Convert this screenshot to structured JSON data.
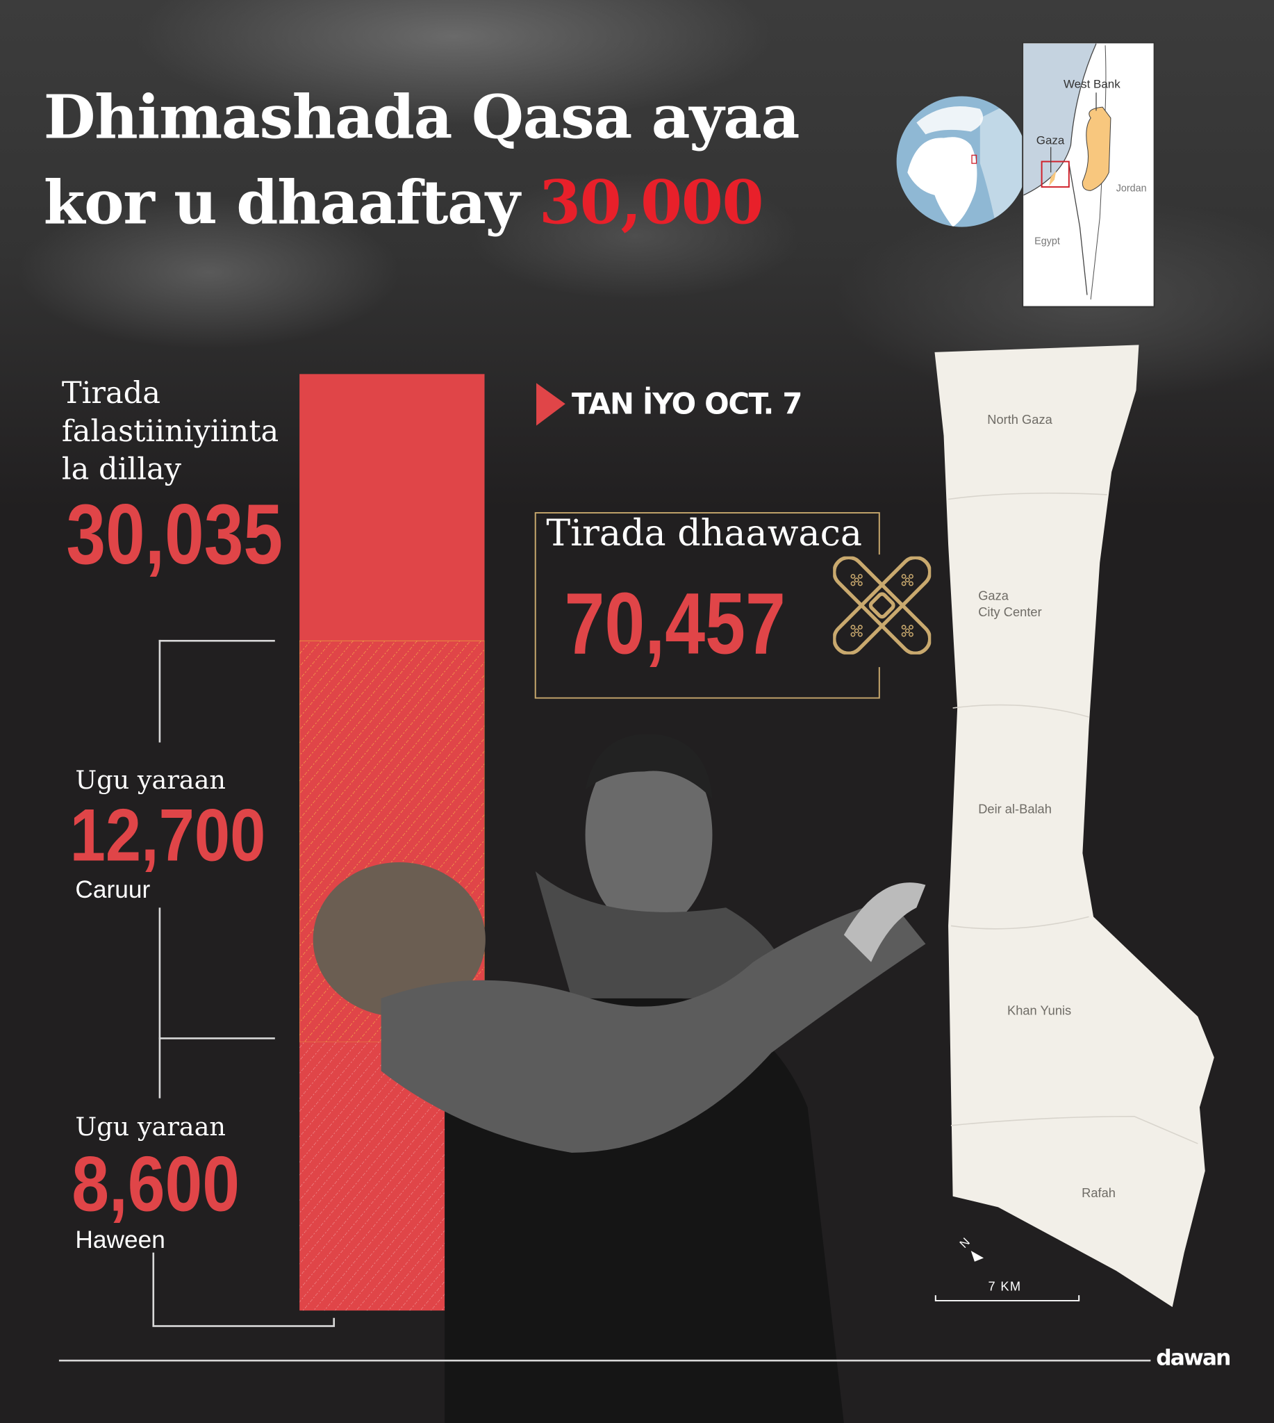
{
  "title": {
    "line1": "Dhimashada Qasa ayaa",
    "line2_prefix": "kor u dhaaftay",
    "line2_highlight": "30,000"
  },
  "since": {
    "label": "TAN İYO OCT. 7",
    "icon": "play-triangle-icon"
  },
  "killed": {
    "label_lines": [
      "Tirada",
      "falastiiniyiinta",
      "la dillay"
    ],
    "value": "30,035"
  },
  "children": {
    "prefix": "Ugu yaraan",
    "value": "12,700",
    "label": "Caruur"
  },
  "women": {
    "prefix": "Ugu yaraan",
    "value": "8,600",
    "label": "Haween"
  },
  "injured": {
    "label": "Tirada dhaawaca",
    "value": "70,457",
    "icon": "bandage-icon"
  },
  "locator_map": {
    "labels": {
      "west_bank": "West Bank",
      "gaza": "Gaza",
      "jordan": "Jordan",
      "egypt": "Egypt"
    }
  },
  "gaza_map": {
    "regions": [
      "North Gaza",
      "Gaza",
      "City Center",
      "Deir al-Balah",
      "Khan Yunis",
      "Rafah"
    ],
    "north": "N",
    "scale": "7 KM"
  },
  "brand": "dawan",
  "colors": {
    "accent_red": "#e04548",
    "title_red": "#e8202a",
    "gold": "#c9a96e",
    "background": "#211f20",
    "map_land": "#f2efe8",
    "west_bank": "#f8c77e"
  }
}
